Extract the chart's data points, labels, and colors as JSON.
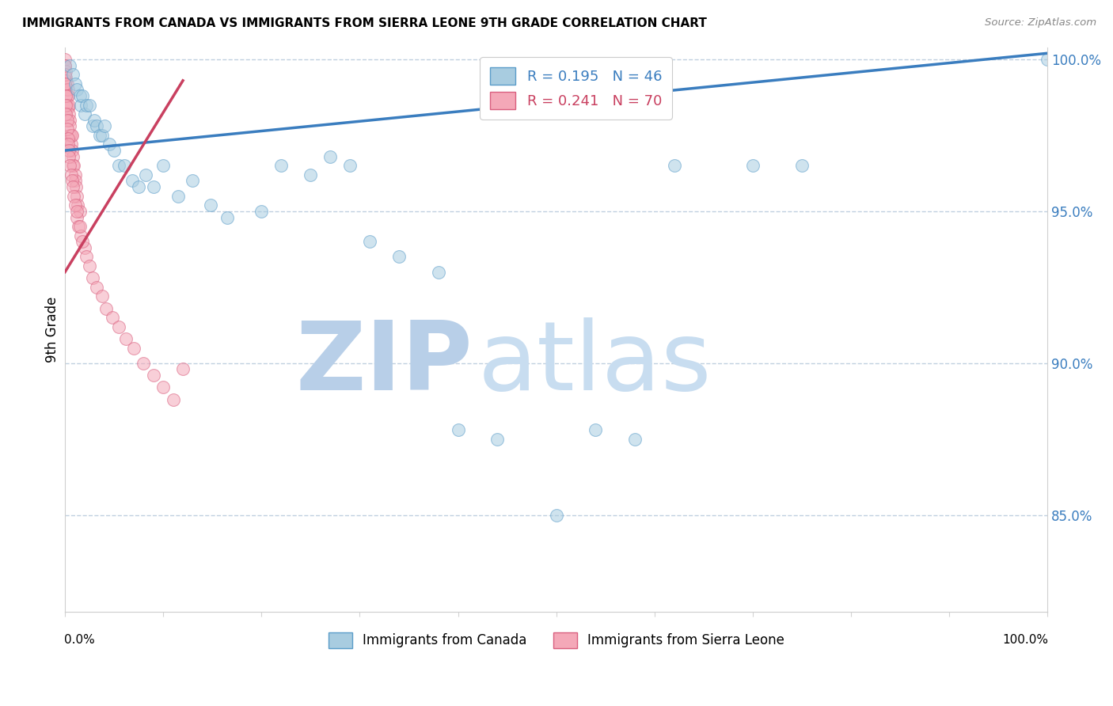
{
  "title": "IMMIGRANTS FROM CANADA VS IMMIGRANTS FROM SIERRA LEONE 9TH GRADE CORRELATION CHART",
  "source_text": "Source: ZipAtlas.com",
  "ylabel": "9th Grade",
  "legend_canada_top": "R = 0.195   N = 46",
  "legend_sierra_top": "R = 0.241   N = 70",
  "legend_bottom_canada": "Immigrants from Canada",
  "legend_bottom_sierra": "Immigrants from Sierra Leone",
  "canada_fill": "#a8cce0",
  "canada_edge": "#5b9dc9",
  "sierra_fill": "#f4a8b8",
  "sierra_edge": "#d95f7f",
  "trend_canada_color": "#3a7dbf",
  "trend_sierra_color": "#c94060",
  "watermark_zip": "#b8cfe8",
  "watermark_atlas": "#c8ddf0",
  "background_color": "#ffffff",
  "grid_color": "#c0d0e0",
  "xlim": [
    0.0,
    1.0
  ],
  "ylim": [
    0.818,
    1.004
  ],
  "y_ticks": [
    0.85,
    0.9,
    0.95,
    1.0
  ],
  "y_tick_labels": [
    "85.0%",
    "90.0%",
    "95.0%",
    "100.0%"
  ],
  "canada_trend_x": [
    0.0,
    1.0
  ],
  "canada_trend_y": [
    0.97,
    1.002
  ],
  "sierra_trend_x": [
    0.0,
    0.12
  ],
  "sierra_trend_y": [
    0.93,
    0.993
  ],
  "canada_x": [
    0.005,
    0.008,
    0.01,
    0.012,
    0.015,
    0.016,
    0.018,
    0.02,
    0.022,
    0.025,
    0.028,
    0.03,
    0.032,
    0.035,
    0.038,
    0.04,
    0.045,
    0.05,
    0.055,
    0.06,
    0.068,
    0.075,
    0.082,
    0.09,
    0.1,
    0.115,
    0.13,
    0.148,
    0.165,
    0.2,
    0.22,
    0.25,
    0.27,
    0.29,
    0.31,
    0.34,
    0.38,
    0.4,
    0.44,
    0.5,
    0.54,
    0.58,
    0.62,
    0.7,
    0.75,
    1.0
  ],
  "canada_y": [
    0.998,
    0.995,
    0.992,
    0.99,
    0.988,
    0.985,
    0.988,
    0.982,
    0.985,
    0.985,
    0.978,
    0.98,
    0.978,
    0.975,
    0.975,
    0.978,
    0.972,
    0.97,
    0.965,
    0.965,
    0.96,
    0.958,
    0.962,
    0.958,
    0.965,
    0.955,
    0.96,
    0.952,
    0.948,
    0.95,
    0.965,
    0.962,
    0.968,
    0.965,
    0.94,
    0.935,
    0.93,
    0.878,
    0.875,
    0.85,
    0.878,
    0.875,
    0.965,
    0.965,
    0.965,
    1.0
  ],
  "sierra_x": [
    0.0,
    0.0,
    0.001,
    0.001,
    0.001,
    0.001,
    0.002,
    0.002,
    0.002,
    0.003,
    0.003,
    0.003,
    0.004,
    0.004,
    0.005,
    0.005,
    0.005,
    0.006,
    0.006,
    0.007,
    0.007,
    0.008,
    0.008,
    0.009,
    0.01,
    0.01,
    0.011,
    0.012,
    0.013,
    0.015,
    0.0,
    0.0,
    0.0,
    0.001,
    0.001,
    0.001,
    0.002,
    0.002,
    0.003,
    0.003,
    0.004,
    0.004,
    0.005,
    0.006,
    0.007,
    0.008,
    0.009,
    0.01,
    0.012,
    0.014,
    0.016,
    0.02,
    0.022,
    0.025,
    0.028,
    0.032,
    0.038,
    0.042,
    0.048,
    0.055,
    0.062,
    0.07,
    0.08,
    0.09,
    0.1,
    0.11,
    0.12,
    0.018,
    0.015,
    0.012
  ],
  "sierra_y": [
    1.0,
    0.998,
    0.996,
    0.994,
    0.993,
    0.99,
    0.992,
    0.988,
    0.985,
    0.99,
    0.988,
    0.984,
    0.985,
    0.982,
    0.98,
    0.978,
    0.975,
    0.975,
    0.972,
    0.975,
    0.97,
    0.968,
    0.965,
    0.965,
    0.962,
    0.96,
    0.958,
    0.955,
    0.952,
    0.95,
    0.998,
    0.995,
    0.992,
    0.988,
    0.985,
    0.982,
    0.98,
    0.977,
    0.974,
    0.972,
    0.97,
    0.968,
    0.965,
    0.962,
    0.96,
    0.958,
    0.955,
    0.952,
    0.948,
    0.945,
    0.942,
    0.938,
    0.935,
    0.932,
    0.928,
    0.925,
    0.922,
    0.918,
    0.915,
    0.912,
    0.908,
    0.905,
    0.9,
    0.896,
    0.892,
    0.888,
    0.898,
    0.94,
    0.945,
    0.95
  ]
}
